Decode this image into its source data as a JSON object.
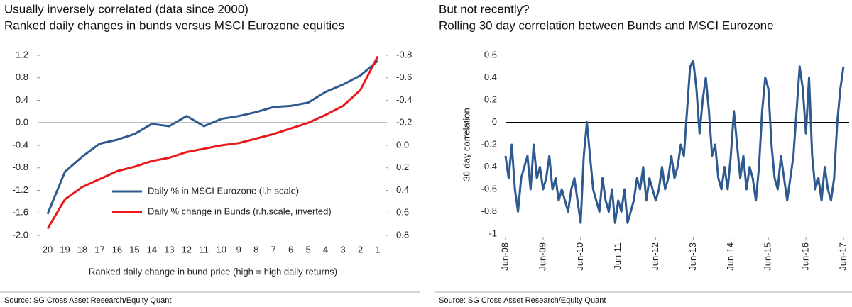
{
  "chart_data": [
    {
      "type": "line",
      "title": "Usually inversely correlated (data since 2000)",
      "subtitle": "Ranked daily changes in bunds versus MSCI Eurozone equities",
      "xlabel": "Ranked daily change in bund price (high = high daily returns)",
      "source": "Source: SG Cross Asset Research/Equity Quant",
      "categories": [
        "20",
        "19",
        "18",
        "17",
        "16",
        "15",
        "14",
        "13",
        "12",
        "11",
        "10",
        "9",
        "8",
        "7",
        "6",
        "5",
        "4",
        "3",
        "2",
        "1"
      ],
      "series": [
        {
          "name": "Daily % in MSCI Eurozone (l.h scale)",
          "color": "#2e5a8f",
          "values": [
            -1.62,
            -0.87,
            -0.6,
            -0.37,
            -0.3,
            -0.2,
            -0.02,
            -0.06,
            0.12,
            -0.06,
            0.07,
            0.12,
            0.19,
            0.28,
            0.3,
            0.36,
            0.55,
            0.68,
            0.84,
            1.1
          ]
        },
        {
          "name": "Daily % change in Bunds (r.h.scale, inverted)",
          "color": "#e8191c",
          "axis": "y2",
          "values": [
            0.74,
            0.48,
            0.37,
            0.3,
            0.23,
            0.19,
            0.14,
            0.11,
            0.06,
            0.03,
            0.0,
            -0.02,
            -0.06,
            -0.1,
            -0.15,
            -0.2,
            -0.27,
            -0.35,
            -0.49,
            -0.79
          ]
        }
      ],
      "ylim": [
        -2,
        1.2
      ],
      "yticks": [
        1.2,
        0.8,
        0.4,
        {
          "value": 0,
          "label": "0.0"
        },
        -0.4,
        -0.8,
        -1.2,
        -1.6,
        {
          "value": -2,
          "label": "-2.0"
        }
      ],
      "y2lim": [
        0.8,
        -0.8
      ],
      "y2ticks": [
        -0.8,
        -0.6,
        -0.4,
        -0.2,
        {
          "value": 0,
          "label": "0.0"
        },
        0.2,
        0.4,
        0.6,
        0.8
      ],
      "legend_position": "lower right",
      "grid": false
    },
    {
      "type": "line",
      "title": "But not recently?",
      "subtitle": "Rolling 30 day correlation between Bunds and MSCI Eurozone",
      "ylabel": "30 day correlation",
      "source": "Source: SG Cross Asset Research/Equity Quant",
      "x": [
        "2008-06",
        "2008-07",
        "2008-08",
        "2008-09",
        "2008-10",
        "2008-11",
        "2008-12",
        "2009-01",
        "2009-02",
        "2009-03",
        "2009-04",
        "2009-05",
        "2009-06",
        "2009-07",
        "2009-08",
        "2009-09",
        "2009-10",
        "2009-11",
        "2009-12",
        "2010-01",
        "2010-02",
        "2010-03",
        "2010-04",
        "2010-05",
        "2010-06",
        "2010-07",
        "2010-08",
        "2010-09",
        "2010-10",
        "2010-11",
        "2010-12",
        "2011-01",
        "2011-02",
        "2011-03",
        "2011-04",
        "2011-05",
        "2011-06",
        "2011-07",
        "2011-08",
        "2011-09",
        "2011-10",
        "2011-11",
        "2011-12",
        "2012-01",
        "2012-02",
        "2012-03",
        "2012-04",
        "2012-05",
        "2012-06",
        "2012-07",
        "2012-08",
        "2012-09",
        "2012-10",
        "2012-11",
        "2012-12",
        "2013-01",
        "2013-02",
        "2013-03",
        "2013-04",
        "2013-05",
        "2013-06",
        "2013-07",
        "2013-08",
        "2013-09",
        "2013-10",
        "2013-11",
        "2013-12",
        "2014-01",
        "2014-02",
        "2014-03",
        "2014-04",
        "2014-05",
        "2014-06",
        "2014-07",
        "2014-08",
        "2014-09",
        "2014-10",
        "2014-11",
        "2014-12",
        "2015-01",
        "2015-02",
        "2015-03",
        "2015-04",
        "2015-05",
        "2015-06",
        "2015-07",
        "2015-08",
        "2015-09",
        "2015-10",
        "2015-11",
        "2015-12",
        "2016-01",
        "2016-02",
        "2016-03",
        "2016-04",
        "2016-05",
        "2016-06",
        "2016-07",
        "2016-08",
        "2016-09",
        "2016-10",
        "2016-11",
        "2016-12",
        "2017-01",
        "2017-02",
        "2017-03",
        "2017-04",
        "2017-05",
        "2017-06"
      ],
      "series": [
        {
          "name": "30 day correlation",
          "color": "#2e5a8f",
          "values": [
            -0.3,
            -0.5,
            -0.2,
            -0.6,
            -0.8,
            -0.5,
            -0.4,
            -0.3,
            -0.6,
            -0.2,
            -0.5,
            -0.4,
            -0.6,
            -0.5,
            -0.3,
            -0.6,
            -0.5,
            -0.7,
            -0.6,
            -0.7,
            -0.8,
            -0.6,
            -0.5,
            -0.7,
            -0.9,
            -0.3,
            0.0,
            -0.3,
            -0.6,
            -0.7,
            -0.8,
            -0.5,
            -0.7,
            -0.8,
            -0.6,
            -0.9,
            -0.7,
            -0.8,
            -0.6,
            -0.9,
            -0.8,
            -0.7,
            -0.5,
            -0.6,
            -0.4,
            -0.7,
            -0.5,
            -0.6,
            -0.7,
            -0.6,
            -0.4,
            -0.6,
            -0.5,
            -0.3,
            -0.5,
            -0.4,
            -0.2,
            -0.3,
            0.1,
            0.5,
            0.55,
            0.3,
            -0.1,
            0.2,
            0.4,
            0.1,
            -0.3,
            -0.2,
            -0.5,
            -0.6,
            -0.4,
            -0.6,
            -0.3,
            0.1,
            -0.2,
            -0.5,
            -0.3,
            -0.6,
            -0.4,
            -0.5,
            -0.7,
            -0.4,
            0.1,
            0.4,
            0.3,
            -0.2,
            -0.5,
            -0.6,
            -0.3,
            -0.5,
            -0.7,
            -0.5,
            -0.3,
            0.1,
            0.5,
            0.3,
            -0.1,
            0.4,
            -0.3,
            -0.6,
            -0.5,
            -0.7,
            -0.4,
            -0.6,
            -0.7,
            -0.5,
            0.0,
            0.3,
            0.5
          ]
        }
      ],
      "xlim": [
        "2008-06",
        "2017-06"
      ],
      "xticks": [
        {
          "value": "2008-06",
          "label": "Jun-08"
        },
        {
          "value": "2009-06",
          "label": "Jun-09"
        },
        {
          "value": "2010-06",
          "label": "Jun-10"
        },
        {
          "value": "2011-06",
          "label": "Jun-11"
        },
        {
          "value": "2012-06",
          "label": "Jun-12"
        },
        {
          "value": "2013-06",
          "label": "Jun-13"
        },
        {
          "value": "2014-06",
          "label": "Jun-14"
        },
        {
          "value": "2015-06",
          "label": "Jun-15"
        },
        {
          "value": "2016-06",
          "label": "Jun-16"
        },
        {
          "value": "2017-06",
          "label": "Jun-17"
        }
      ],
      "ylim": [
        -1,
        0.6
      ],
      "yticks": [
        0.6,
        0.4,
        0.2,
        0,
        -0.2,
        -0.4,
        -0.6,
        -0.8,
        -1
      ],
      "grid": false
    }
  ]
}
